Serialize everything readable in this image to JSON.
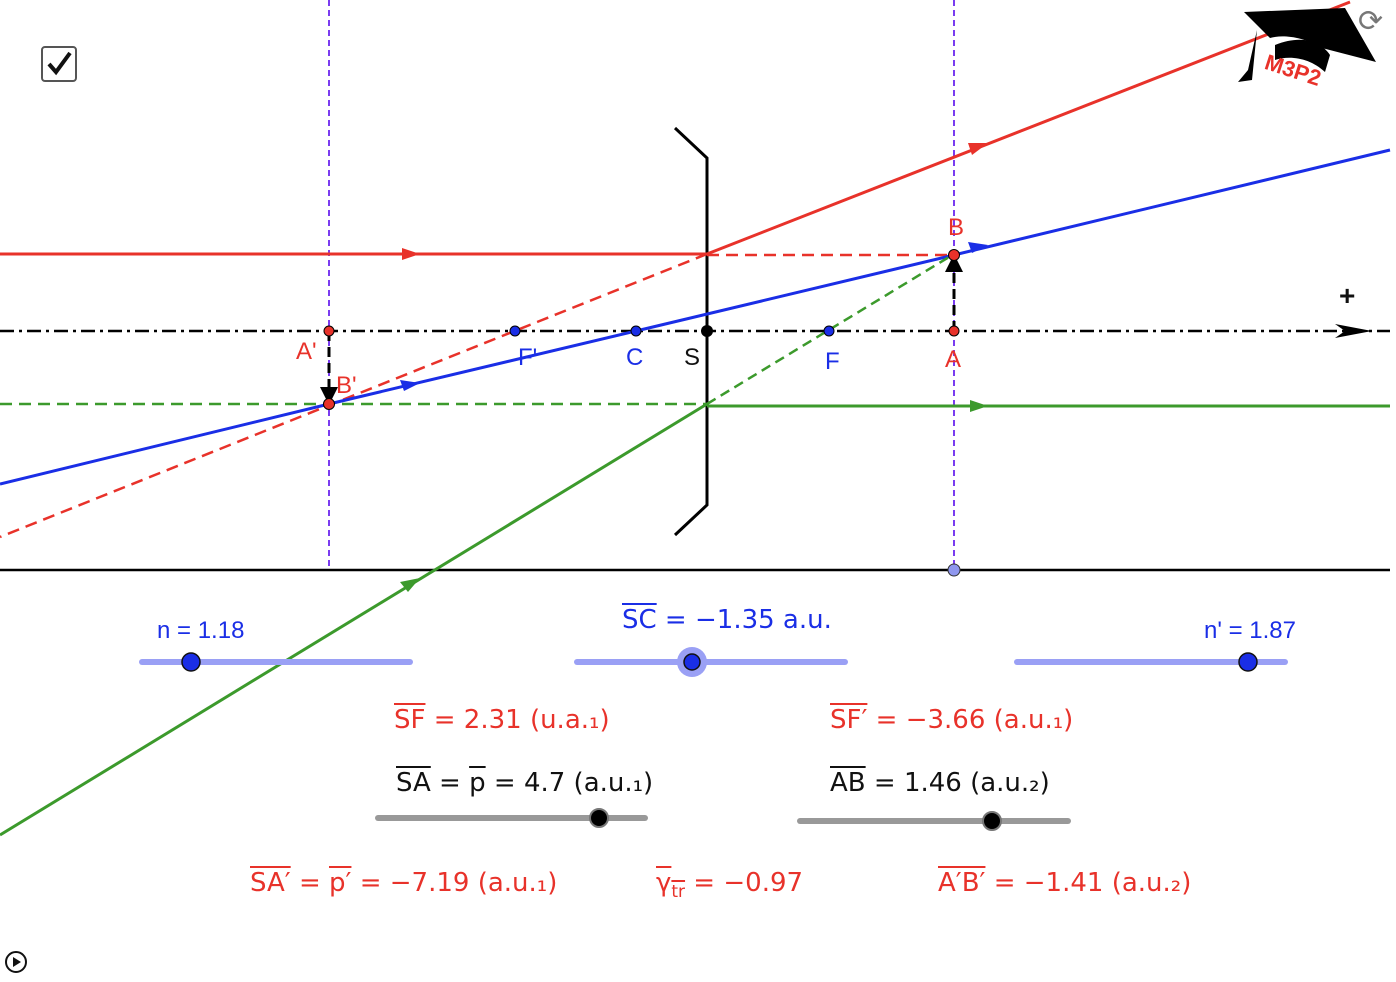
{
  "colors": {
    "red": "#e8322a",
    "blue": "#1a2ee6",
    "green": "#3c9a2c",
    "purple": "#7a3cf0",
    "axis": "#000000",
    "slider_blue": "#9aa0f5",
    "slider_grey": "#999999"
  },
  "logo": {
    "text": "M3P2",
    "icon": "graduation-cap-icon"
  },
  "icons": {
    "checkbox": "checkbox-checked-icon",
    "refresh": "refresh-icon",
    "play": "play-icon"
  },
  "axis": {
    "direction_label": "+"
  },
  "points": {
    "A_prime": "A'",
    "B_prime": "B'",
    "F_prime": "F'",
    "C": "C",
    "S": "S",
    "F": "F",
    "A": "A",
    "B": "B"
  },
  "sliders": {
    "n": {
      "label": "n = 1.18",
      "value": 1.18
    },
    "SC": {
      "label": "SC",
      "value_text": " = −1.35 a.u.",
      "value": -1.35
    },
    "n_prime": {
      "label": "n' = 1.87",
      "value": 1.87
    },
    "SA": {
      "label": "SA",
      "mid": " = ",
      "p": "p",
      "value_text": " = 4.7 (a.u.₁)",
      "value": 4.7
    },
    "AB": {
      "label": "AB",
      "value_text": " =  1.46 (a.u.₂)",
      "value": 1.46
    }
  },
  "results": {
    "SF": {
      "label": "SF",
      "value_text": " = 2.31 (u.a.₁)"
    },
    "SF_prime": {
      "label": "SF′",
      "value_text": " = −3.66 (a.u.₁)"
    },
    "SA_prime": {
      "label": "SA′",
      "mid": " = ",
      "p": "p′",
      "value_text": " = −7.19 (a.u.₁)"
    },
    "gamma": {
      "label": "γ",
      "sub": "tr",
      "value_text": " = −0.97"
    },
    "AB_prime": {
      "label": "A′B′",
      "value_text": " = −1.41 (a.u.₂)"
    }
  }
}
